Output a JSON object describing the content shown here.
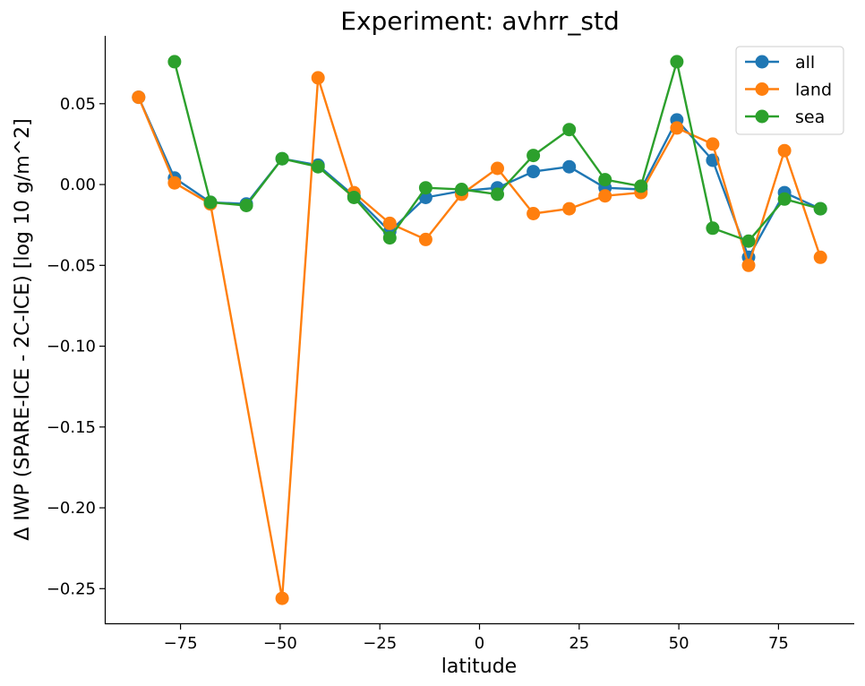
{
  "chart_data": {
    "type": "line",
    "title": "Experiment: avhrr_std",
    "xlabel": "latitude",
    "ylabel": "Δ IWP (SPARE-ICE - 2C-ICE) [log 10 g/m^2]",
    "xlim": [
      -94,
      94
    ],
    "ylim": [
      -0.272,
      0.092
    ],
    "x_ticks": [
      -75,
      -50,
      -25,
      0,
      25,
      50,
      75
    ],
    "x_tick_labels": [
      "−75",
      "−50",
      "−25",
      "0",
      "25",
      "50",
      "75"
    ],
    "y_ticks": [
      0.05,
      0.0,
      -0.05,
      -0.1,
      -0.15,
      -0.2,
      -0.25
    ],
    "y_tick_labels": [
      "0.05",
      "0.00",
      "−0.05",
      "−0.10",
      "−0.15",
      "−0.20",
      "−0.25"
    ],
    "grid": false,
    "legend_position": "top-right",
    "series": [
      {
        "name": "all",
        "color": "#1f77b4",
        "points": [
          [
            -85.5,
            0.054
          ],
          [
            -76.5,
            0.004
          ],
          [
            -67.5,
            -0.011
          ],
          [
            -58.5,
            -0.012
          ],
          [
            -49.5,
            0.016
          ],
          [
            -40.5,
            0.012
          ],
          [
            -31.5,
            -0.007
          ],
          [
            -22.5,
            -0.029
          ],
          [
            -13.5,
            -0.008
          ],
          [
            -4.5,
            -0.004
          ],
          [
            4.5,
            -0.002
          ],
          [
            13.5,
            0.008
          ],
          [
            22.5,
            0.011
          ],
          [
            31.5,
            -0.002
          ],
          [
            40.5,
            -0.003
          ],
          [
            49.5,
            0.04
          ],
          [
            58.5,
            0.015
          ],
          [
            67.5,
            -0.045
          ],
          [
            76.5,
            -0.005
          ],
          [
            85.5,
            -0.015
          ]
        ]
      },
      {
        "name": "land",
        "color": "#ff7f0e",
        "points": [
          [
            -85.5,
            0.054
          ],
          [
            -76.5,
            0.001
          ],
          [
            -67.5,
            -0.012
          ],
          [
            -49.5,
            -0.256
          ],
          [
            -40.5,
            0.066
          ],
          [
            -31.5,
            -0.005
          ],
          [
            -22.5,
            -0.024
          ],
          [
            -13.5,
            -0.034
          ],
          [
            -4.5,
            -0.006
          ],
          [
            4.5,
            0.01
          ],
          [
            13.5,
            -0.018
          ],
          [
            22.5,
            -0.015
          ],
          [
            31.5,
            -0.007
          ],
          [
            40.5,
            -0.005
          ],
          [
            49.5,
            0.035
          ],
          [
            58.5,
            0.025
          ],
          [
            67.5,
            -0.05
          ],
          [
            76.5,
            0.021
          ],
          [
            85.5,
            -0.045
          ]
        ]
      },
      {
        "name": "sea",
        "color": "#2ca02c",
        "points": [
          [
            -76.5,
            0.076
          ],
          [
            -67.5,
            -0.011
          ],
          [
            -58.5,
            -0.013
          ],
          [
            -49.5,
            0.016
          ],
          [
            -40.5,
            0.011
          ],
          [
            -31.5,
            -0.008
          ],
          [
            -22.5,
            -0.033
          ],
          [
            -13.5,
            -0.002
          ],
          [
            -4.5,
            -0.003
          ],
          [
            4.5,
            -0.006
          ],
          [
            13.5,
            0.018
          ],
          [
            22.5,
            0.034
          ],
          [
            31.5,
            0.003
          ],
          [
            40.5,
            -0.001
          ],
          [
            49.5,
            0.076
          ],
          [
            58.5,
            -0.027
          ],
          [
            67.5,
            -0.035
          ],
          [
            76.5,
            -0.009
          ],
          [
            85.5,
            -0.015
          ]
        ]
      }
    ]
  }
}
